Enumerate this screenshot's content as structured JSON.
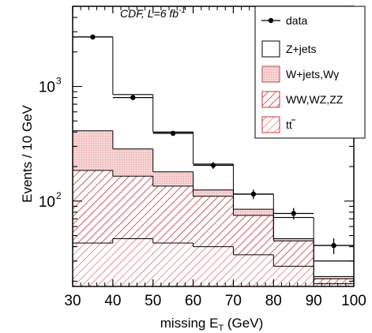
{
  "chart_data": {
    "type": "histogram",
    "annotation": "CDF, L=6 fb",
    "annotation_sup": "-1",
    "xlabel": "missing E",
    "xlabel_sub": "T",
    "xlabel_unit": " (GeV)",
    "ylabel": "Events / 10 GeV",
    "xlim": [
      30,
      100
    ],
    "ylim": [
      18,
      5000
    ],
    "yscale": "log",
    "x_ticks": [
      30,
      40,
      50,
      60,
      70,
      80,
      90,
      100
    ],
    "y_tick_labels": [
      {
        "value": 100,
        "base": "10",
        "exp": "2"
      },
      {
        "value": 1000,
        "base": "10",
        "exp": "3"
      }
    ],
    "bin_edges": [
      30,
      40,
      50,
      60,
      70,
      80,
      90,
      100
    ],
    "stacks": [
      {
        "name": "tt̄",
        "label": "tt",
        "values": [
          43,
          47,
          43,
          40,
          34,
          27,
          19
        ],
        "fill": "#ffffff",
        "hatch": "#cc3333"
      },
      {
        "name": "WW,WZ,ZZ",
        "label": "WW,WZ,ZZ",
        "values": [
          185,
          165,
          135,
          110,
          75,
          45,
          21
        ],
        "fill": "#ffffff",
        "hatch": "#cc3333"
      },
      {
        "name": "W+jets,Wγ",
        "label": "W+jets,Wγ",
        "values": [
          410,
          285,
          180,
          125,
          85,
          47,
          22
        ],
        "fill": "#f6d3d3"
      },
      {
        "name": "Z+jets",
        "label": "Z+jets",
        "values": [
          2700,
          850,
          400,
          210,
          115,
          72,
          30
        ],
        "fill": "#ffffff"
      }
    ],
    "data_points": {
      "name": "data",
      "x": [
        35,
        45,
        55,
        65,
        75,
        85,
        95
      ],
      "y": [
        2700,
        800,
        390,
        205,
        115,
        78,
        41
      ],
      "yerr": [
        52,
        28,
        20,
        14,
        11,
        9,
        6.4
      ]
    },
    "legend": {
      "placement": "top-right",
      "entries": [
        {
          "key": "data",
          "label": "data",
          "style": "marker"
        },
        {
          "key": "zjets",
          "label": "Z+jets",
          "style": "box-white"
        },
        {
          "key": "wjets",
          "label": "W+jets,Wγ",
          "style": "box-pink"
        },
        {
          "key": "diboson",
          "label": "WW,WZ,ZZ",
          "style": "box-hatch"
        },
        {
          "key": "ttbar",
          "label": "tt",
          "style": "box-hatch-light"
        }
      ]
    },
    "colors": {
      "hatch": "#cc3333",
      "pink_fill": "#f6d3d3",
      "pink_line": "#b05050",
      "line": "#000000"
    }
  }
}
